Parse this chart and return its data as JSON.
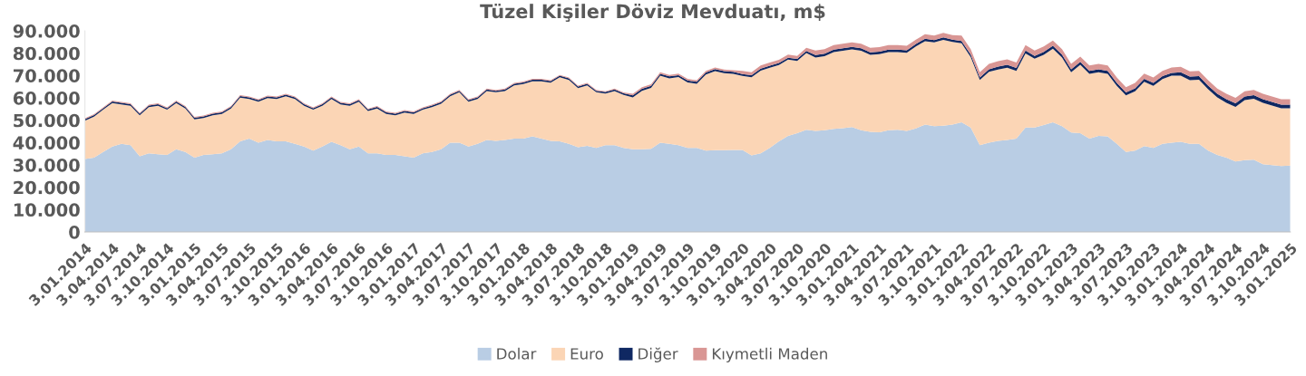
{
  "chart_data": {
    "type": "area",
    "stacked": true,
    "title": "Tüzel Kişiler Döviz Mevduatı, m$",
    "categories": [
      "3.01.2014",
      null,
      null,
      "3.04.2014",
      null,
      null,
      "3.07.2014",
      null,
      null,
      "3.10.2014",
      null,
      null,
      "3.01.2015",
      null,
      null,
      "3.04.2015",
      null,
      null,
      "3.07.2015",
      null,
      null,
      "3.10.2015",
      null,
      null,
      "3.01.2016",
      null,
      null,
      "3.04.2016",
      null,
      null,
      "3.07.2016",
      null,
      null,
      "3.10.2016",
      null,
      null,
      "3.01.2017",
      null,
      null,
      "3.04.2017",
      null,
      null,
      "3.07.2017",
      null,
      null,
      "3.10.2017",
      null,
      null,
      "3.01.2018",
      null,
      null,
      "3.04.2018",
      null,
      null,
      "3.07.2018",
      null,
      null,
      "3.10.2018",
      null,
      null,
      "3.01.2019",
      null,
      null,
      "3.04.2019",
      null,
      null,
      "3.07.2019",
      null,
      null,
      "3.10.2019",
      null,
      null,
      "3.01.2020",
      null,
      null,
      "3.04.2020",
      null,
      null,
      "3.07.2020",
      null,
      null,
      "3.10.2020",
      null,
      null,
      "3.01.2021",
      null,
      null,
      "3.04.2021",
      null,
      null,
      "3.07.2021",
      null,
      null,
      "3.10.2021",
      null,
      null,
      "3.01.2022",
      null,
      null,
      "3.04.2022",
      null,
      null,
      "3.07.2022",
      null,
      null,
      "3.10.2022",
      null,
      null,
      "3.01.2023",
      null,
      null,
      "3.04.2023",
      null,
      null,
      "3.07.2023",
      null,
      null,
      "3.10.2023",
      null,
      null,
      "3.01.2024",
      null,
      null,
      "3.04.2024",
      null,
      null,
      "3.07.2024",
      null,
      null,
      "3.10.2024",
      null,
      null,
      "3.01.2025"
    ],
    "series": [
      {
        "name": "Dolar",
        "color": "#b9cde4",
        "values": [
          32700,
          33300,
          35800,
          38200,
          39400,
          38800,
          33900,
          35200,
          34800,
          34500,
          37000,
          35800,
          33300,
          34500,
          34800,
          35200,
          37000,
          40600,
          41800,
          40000,
          41200,
          40600,
          40600,
          39400,
          38200,
          36400,
          38200,
          40400,
          38800,
          37000,
          38200,
          35200,
          35200,
          34500,
          34500,
          33900,
          33300,
          35200,
          35800,
          37000,
          40000,
          40000,
          38200,
          39400,
          41200,
          40800,
          41200,
          41800,
          41800,
          42800,
          41800,
          40800,
          40600,
          39400,
          37900,
          38500,
          37600,
          38800,
          38800,
          37600,
          37000,
          37000,
          37200,
          40000,
          39400,
          38800,
          37600,
          37600,
          36400,
          36600,
          36600,
          36700,
          36700,
          34300,
          35200,
          37600,
          40600,
          43000,
          44200,
          45700,
          45200,
          45500,
          46100,
          46400,
          46900,
          45500,
          44800,
          44600,
          45500,
          45700,
          45200,
          46300,
          48100,
          47300,
          47600,
          48100,
          49100,
          46700,
          38800,
          40000,
          40800,
          41200,
          41800,
          46700,
          46700,
          47900,
          49100,
          47300,
          44500,
          44200,
          41800,
          43000,
          42800,
          39400,
          35800,
          36400,
          38400,
          37600,
          39400,
          40000,
          40400,
          39400,
          39400,
          36400,
          34500,
          33300,
          31500,
          32100,
          32400,
          30300,
          29900,
          29500,
          29700
        ]
      },
      {
        "name": "Euro",
        "color": "#fbd5b5",
        "values": [
          17100,
          18300,
          18900,
          19500,
          17700,
          17700,
          18300,
          20700,
          21700,
          20200,
          20700,
          19500,
          17100,
          16500,
          17400,
          17600,
          18300,
          19500,
          17700,
          18300,
          18700,
          18900,
          20100,
          20100,
          18300,
          18300,
          18300,
          19100,
          18300,
          19500,
          20100,
          18900,
          20100,
          18300,
          17700,
          19500,
          19500,
          19500,
          20100,
          20400,
          20700,
          22500,
          20100,
          20100,
          21900,
          21700,
          21900,
          23800,
          24400,
          24600,
          25600,
          26000,
          28600,
          28600,
          26500,
          27100,
          24900,
          23100,
          24300,
          23700,
          23200,
          26200,
          27300,
          29900,
          29300,
          30500,
          29300,
          28700,
          34100,
          35400,
          34500,
          34100,
          33100,
          34900,
          37000,
          35900,
          34100,
          34100,
          32300,
          34400,
          32900,
          33200,
          34400,
          34700,
          34800,
          35600,
          34500,
          35000,
          35000,
          34800,
          35000,
          36700,
          37300,
          37500,
          38400,
          36900,
          35300,
          31600,
          29200,
          31700,
          31900,
          32300,
          30300,
          33200,
          30800,
          31400,
          32900,
          30800,
          27000,
          30600,
          29000,
          28500,
          28000,
          26000,
          25300,
          26600,
          28800,
          27800,
          29000,
          29900,
          29500,
          28500,
          28700,
          27500,
          25700,
          24500,
          24500,
          26900,
          27200,
          27500,
          26700,
          25900,
          25700
        ]
      },
      {
        "name": "Diğer",
        "color": "#0f2862",
        "values": [
          700,
          700,
          700,
          700,
          700,
          700,
          700,
          700,
          700,
          700,
          700,
          700,
          700,
          700,
          700,
          700,
          700,
          700,
          700,
          700,
          700,
          700,
          700,
          700,
          700,
          700,
          700,
          700,
          700,
          700,
          700,
          700,
          700,
          700,
          700,
          700,
          700,
          700,
          700,
          700,
          700,
          700,
          700,
          700,
          700,
          700,
          700,
          700,
          700,
          700,
          700,
          700,
          700,
          700,
          700,
          700,
          700,
          700,
          700,
          700,
          900,
          900,
          900,
          900,
          900,
          900,
          900,
          900,
          900,
          900,
          900,
          900,
          900,
          900,
          900,
          900,
          900,
          900,
          900,
          900,
          1100,
          1100,
          1100,
          1100,
          1100,
          1100,
          1100,
          1100,
          1100,
          1100,
          1100,
          1100,
          1100,
          1100,
          1100,
          1100,
          1100,
          1100,
          1100,
          1100,
          1300,
          1300,
          1300,
          1300,
          1300,
          1300,
          1300,
          1300,
          1300,
          1300,
          1300,
          1300,
          1300,
          1300,
          1300,
          1300,
          1300,
          1300,
          1300,
          1300,
          1600,
          1600,
          1600,
          1600,
          1600,
          1600,
          1600,
          1600,
          1600,
          1600,
          1600,
          1600,
          1600
        ]
      },
      {
        "name": "Kıymetli Maden",
        "color": "#d99694",
        "values": [
          400,
          400,
          400,
          400,
          400,
          400,
          400,
          400,
          400,
          400,
          400,
          400,
          400,
          400,
          400,
          400,
          400,
          400,
          400,
          400,
          400,
          400,
          400,
          400,
          400,
          400,
          400,
          400,
          400,
          400,
          400,
          400,
          400,
          400,
          400,
          400,
          400,
          400,
          400,
          400,
          400,
          400,
          400,
          400,
          400,
          400,
          400,
          400,
          400,
          400,
          400,
          400,
          400,
          400,
          400,
          400,
          400,
          400,
          400,
          400,
          700,
          700,
          700,
          700,
          700,
          700,
          700,
          700,
          700,
          700,
          700,
          700,
          1400,
          1400,
          1400,
          1400,
          1400,
          1400,
          1400,
          1400,
          2000,
          2000,
          2000,
          2000,
          2000,
          2000,
          2000,
          2000,
          2000,
          2000,
          2000,
          2000,
          2000,
          2000,
          2000,
          2000,
          2400,
          2400,
          2400,
          2400,
          2400,
          2400,
          2400,
          2400,
          2400,
          2400,
          2400,
          2400,
          2400,
          2400,
          2400,
          2400,
          2400,
          2400,
          2400,
          2400,
          2400,
          2400,
          2400,
          2400,
          2400,
          2400,
          2400,
          2400,
          2400,
          2400,
          2400,
          2400,
          2400,
          2400,
          2400,
          2400,
          2400
        ]
      }
    ],
    "ylim": [
      0,
      90000
    ],
    "yticks": [
      0,
      {
        "value": 10000,
        "label": "10.000"
      },
      {
        "value": 20000,
        "label": "20.000"
      },
      {
        "value": 30000,
        "label": "30.000"
      },
      {
        "value": 40000,
        "label": "40.000"
      },
      {
        "value": 50000,
        "label": "50.000"
      },
      {
        "value": 60000,
        "label": "60.000"
      },
      {
        "value": 70000,
        "label": "70.000"
      },
      {
        "value": 80000,
        "label": "80.000"
      },
      {
        "value": 90000,
        "label": "90.000"
      }
    ],
    "grid": false,
    "legend": "bottom"
  }
}
